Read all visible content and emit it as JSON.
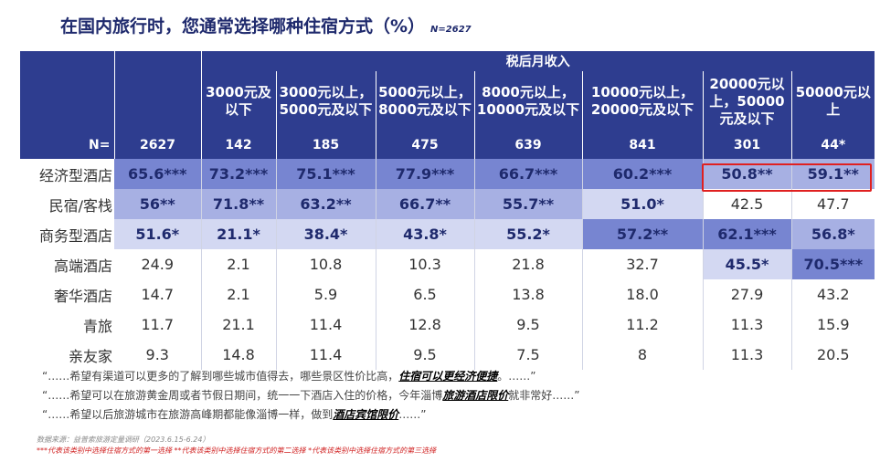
{
  "title": "在国内旅行时，您通常选择哪种住宿方式（%）",
  "sample": "N=2627",
  "group_header": "税后月收入",
  "columns": [
    "3000元及以下",
    "3000元以上，5000元及以下",
    "5000元以上，8000元及以下",
    "8000元以上，10000元及以下",
    "10000元以上，20000元及以下",
    "20000元以上，50000元及以下",
    "50000元以上"
  ],
  "n_label": "N=",
  "n_values": [
    "2627",
    "142",
    "185",
    "475",
    "639",
    "841",
    "301",
    "44*"
  ],
  "rows": [
    {
      "label": "经济型酒店",
      "cells": [
        "65.6***",
        "73.2***",
        "75.1***",
        "77.9***",
        "66.7***",
        "60.2***",
        "50.8**",
        "59.1**"
      ]
    },
    {
      "label": "民宿/客栈",
      "cells": [
        "56**",
        "71.8**",
        "63.2**",
        "66.7**",
        "55.7**",
        "51.0*",
        "42.5",
        "47.7"
      ]
    },
    {
      "label": "商务型酒店",
      "cells": [
        "51.6*",
        "21.1*",
        "38.4*",
        "43.8*",
        "55.2*",
        "57.2**",
        "62.1***",
        "56.8*"
      ]
    },
    {
      "label": "高端酒店",
      "cells": [
        "24.9",
        "2.1",
        "10.8",
        "10.3",
        "21.8",
        "32.7",
        "45.5*",
        "70.5***"
      ]
    },
    {
      "label": "奢华酒店",
      "cells": [
        "14.7",
        "2.1",
        "5.9",
        "6.5",
        "13.8",
        "18.0",
        "27.9",
        "43.2"
      ]
    },
    {
      "label": "青旅",
      "cells": [
        "11.7",
        "21.1",
        "11.4",
        "12.8",
        "9.5",
        "11.2",
        "11.3",
        "15.9"
      ]
    },
    {
      "label": "亲友家",
      "cells": [
        "9.3",
        "14.8",
        "11.4",
        "9.5",
        "7.5",
        "8",
        "11.3",
        "20.5"
      ]
    }
  ],
  "quotes": [
    {
      "pre": "“……希望有渠道可以更多的了解到哪些城市值得去，哪些景区性价比高，",
      "em": "住宿可以更经济便捷",
      "post": "。……”"
    },
    {
      "pre": "“……希望可以在旅游黄金周或者节假日期间，统一一下酒店入住的价格，今年淄博",
      "em": "旅游酒店限价",
      "post": "就非常好……”"
    },
    {
      "pre": "“……希望以后旅游城市在旅游高峰期都能像淄博一样，做到",
      "em": "酒店宾馆限价",
      "post": "……”"
    }
  ],
  "source": "数据来源：益普索旅游定量调研（2023.6.15-6.24）",
  "note": "***代表该类别中选择住宿方式的第一选择 **代表该类别中选择住宿方式的第二选择 *代表该类别中选择住宿方式的第三选择",
  "colors": {
    "header_bg": "#2e3d8f",
    "shade_dark": "#7785d1",
    "shade_mid": "#a7b0e3",
    "shade_light": "#d3d8f2",
    "highlight": "#e02020"
  }
}
